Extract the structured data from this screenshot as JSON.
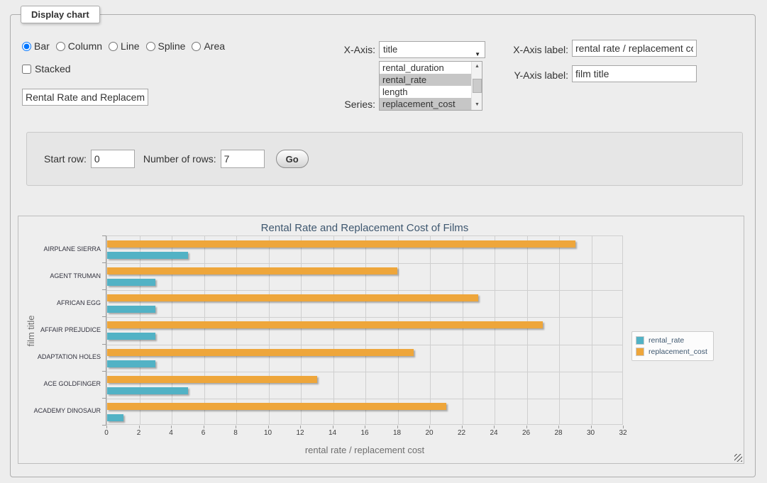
{
  "fieldset": {
    "legend": "Display chart"
  },
  "chart_type": {
    "options": [
      {
        "label": "Bar",
        "selected": true
      },
      {
        "label": "Column",
        "selected": false
      },
      {
        "label": "Line",
        "selected": false
      },
      {
        "label": "Spline",
        "selected": false
      },
      {
        "label": "Area",
        "selected": false
      }
    ]
  },
  "stacked": {
    "label": "Stacked",
    "checked": false
  },
  "chart_title_input": {
    "value": "Rental Rate and Replacement Cost of Films"
  },
  "x_axis_select": {
    "label": "X-Axis:",
    "value": "title"
  },
  "series_select": {
    "label": "Series:",
    "options": [
      {
        "label": "rental_duration",
        "selected": false
      },
      {
        "label": "rental_rate",
        "selected": true
      },
      {
        "label": "length",
        "selected": false
      },
      {
        "label": "replacement_cost",
        "selected": true
      }
    ]
  },
  "axis_labels": {
    "x_label": "X-Axis label:",
    "x_value": "rental rate / replacement cost",
    "y_label": "Y-Axis label:",
    "y_value": "film title"
  },
  "row_controls": {
    "start_row_label": "Start row:",
    "start_row_value": "0",
    "number_of_rows_label": "Number of rows:",
    "number_of_rows_value": "7",
    "go_label": "Go"
  },
  "chart_data": {
    "type": "bar",
    "orientation": "horizontal",
    "title": "Rental Rate and Replacement Cost of Films",
    "categories": [
      "AIRPLANE SIERRA",
      "AGENT TRUMAN",
      "AFRICAN EGG",
      "AFFAIR PREJUDICE",
      "ADAPTATION HOLES",
      "ACE GOLDFINGER",
      "ACADEMY DINOSAUR"
    ],
    "series": [
      {
        "name": "rental_rate",
        "color": "#52B2C5",
        "values": [
          4.99,
          2.99,
          2.99,
          2.99,
          2.99,
          4.99,
          0.99
        ]
      },
      {
        "name": "replacement_cost",
        "color": "#EEA63B",
        "values": [
          28.99,
          17.99,
          22.99,
          26.99,
          18.99,
          12.99,
          20.99
        ]
      }
    ],
    "xlabel": "rental rate / replacement cost",
    "ylabel": "film title",
    "xlim": [
      0,
      32
    ],
    "xticks": [
      0,
      2,
      4,
      6,
      8,
      10,
      12,
      14,
      16,
      18,
      20,
      22,
      24,
      26,
      28,
      30,
      32
    ],
    "grid": true,
    "legend_position": "right"
  }
}
